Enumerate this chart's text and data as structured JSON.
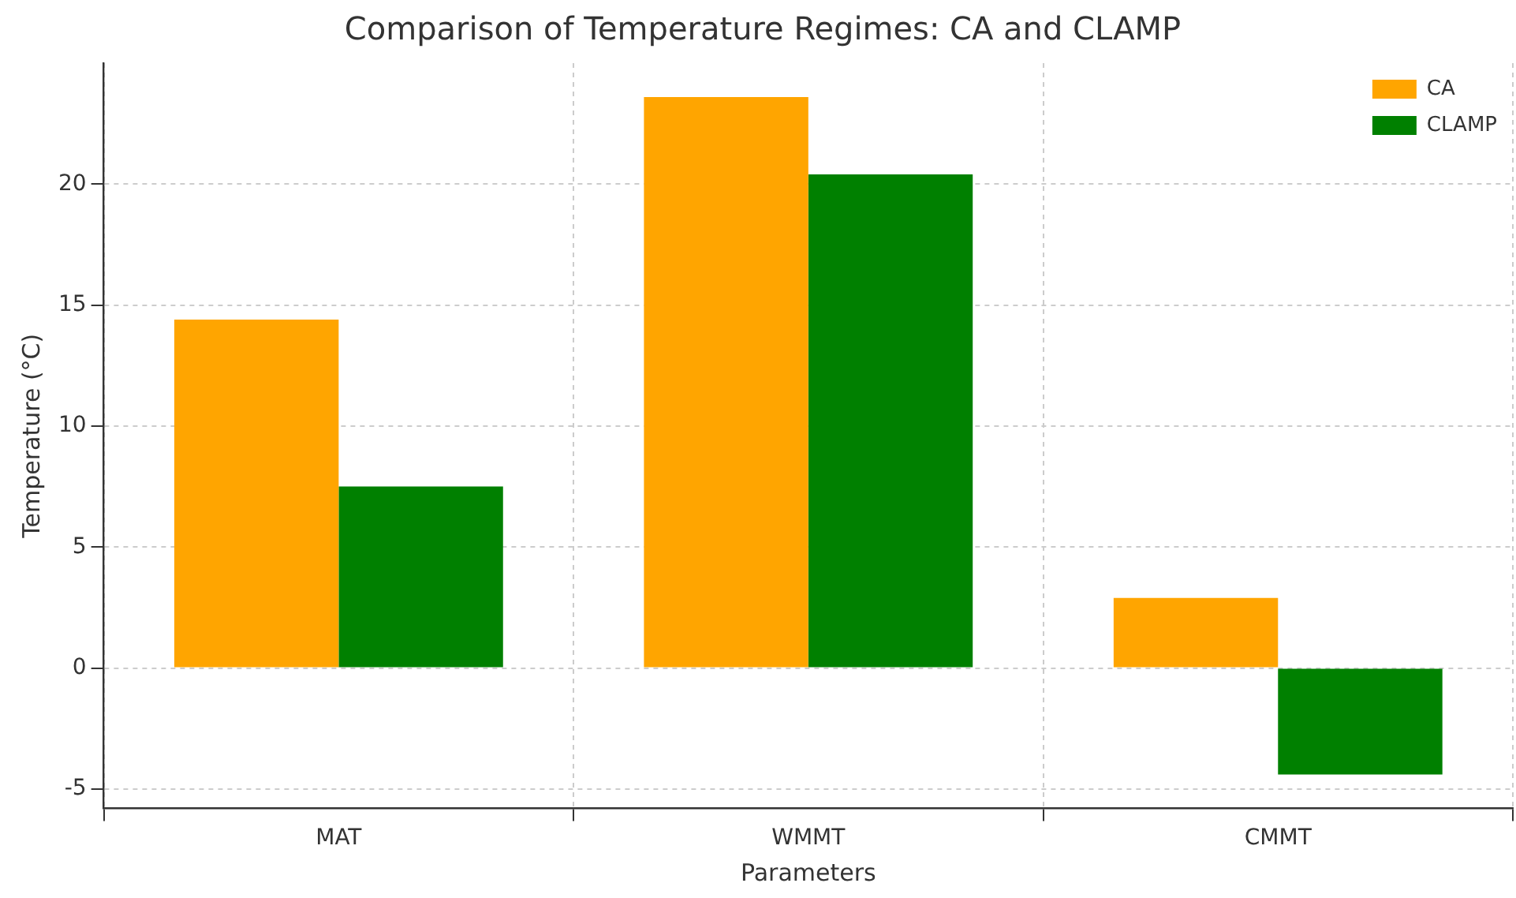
{
  "chart_data": {
    "type": "bar",
    "title": "Comparison of Temperature Regimes: CA and CLAMP",
    "xlabel": "Parameters",
    "ylabel": "Temperature (°C)",
    "categories": [
      "MAT",
      "WMMT",
      "CMMT"
    ],
    "series": [
      {
        "name": "CA",
        "color": "#ffa500",
        "values": [
          14.4,
          23.6,
          2.9
        ]
      },
      {
        "name": "CLAMP",
        "color": "#008000",
        "values": [
          7.5,
          20.4,
          -4.4
        ]
      }
    ],
    "ylim": [
      -5.8,
      25
    ],
    "yticks": [
      -5,
      0,
      5,
      10,
      15,
      20
    ],
    "grid": true,
    "legend": "top right"
  }
}
